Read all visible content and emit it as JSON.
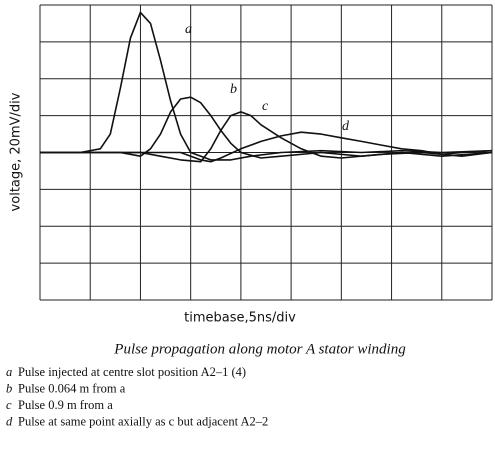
{
  "chart_data": {
    "type": "line",
    "title": "Pulse propagation along motor A stator winding",
    "xlabel": "timebase,5ns/div",
    "ylabel": "voltage, 20mV/div",
    "xlim": [
      0,
      45
    ],
    "ylim": [
      -80,
      80
    ],
    "xticks": [
      0,
      5,
      10,
      15,
      20,
      25,
      30,
      35,
      40,
      45
    ],
    "yticks": [
      -80,
      -60,
      -40,
      -20,
      0,
      20,
      40,
      60,
      80
    ],
    "grid": true,
    "series": [
      {
        "name": "a",
        "color": "#111111",
        "description": "Pulse injected at centre slot position A2–1 (4)",
        "x": [
          0,
          4,
          6,
          7,
          8,
          9,
          10,
          11,
          12,
          13,
          14,
          15,
          17,
          19,
          21,
          24,
          28,
          32,
          36,
          40,
          45
        ],
        "values": [
          0,
          0,
          2,
          10,
          35,
          62,
          76,
          70,
          50,
          28,
          10,
          0,
          -4,
          -4,
          -2,
          0,
          1,
          0,
          1,
          0,
          1
        ]
      },
      {
        "name": "b",
        "color": "#111111",
        "description": "Pulse 0.064 m from a",
        "x": [
          0,
          8,
          10,
          11,
          12,
          13,
          14,
          15,
          16,
          17,
          18,
          19,
          20,
          22,
          24,
          28,
          32,
          36,
          40,
          45
        ],
        "values": [
          0,
          0,
          -2,
          2,
          10,
          22,
          29,
          30,
          27,
          20,
          12,
          5,
          0,
          -3,
          -2,
          0,
          -2,
          0,
          -2,
          0
        ]
      },
      {
        "name": "c",
        "color": "#111111",
        "description": "Pulse 0.9 m from a",
        "x": [
          0,
          10,
          12,
          14,
          16,
          17,
          18,
          19,
          20,
          21,
          22,
          24,
          26,
          28,
          30,
          34,
          38,
          42,
          45
        ],
        "values": [
          0,
          0,
          -2,
          -4,
          -5,
          2,
          12,
          20,
          22,
          20,
          15,
          8,
          2,
          -2,
          -3,
          -1,
          0,
          -2,
          0
        ]
      },
      {
        "name": "d",
        "color": "#111111",
        "description": "Pulse at same point axially as c but adjacent A2–2",
        "x": [
          0,
          14,
          16,
          17,
          18,
          20,
          22,
          24,
          26,
          28,
          30,
          32,
          34,
          36,
          38,
          40,
          42,
          45
        ],
        "values": [
          0,
          0,
          -4,
          -5,
          -3,
          2,
          6,
          9,
          11,
          10,
          8,
          6,
          4,
          2,
          1,
          -1,
          0,
          1
        ]
      }
    ]
  }
}
